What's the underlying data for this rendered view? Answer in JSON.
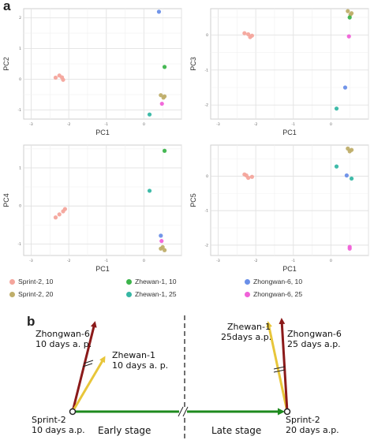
{
  "panel_labels": {
    "a": "a",
    "b": "b"
  },
  "legend": [
    {
      "label": "Sprint-2, 10",
      "color": "#f4a59c"
    },
    {
      "label": "Zhewan-1, 10",
      "color": "#3cb44b"
    },
    {
      "label": "Zhongwan-6, 10",
      "color": "#6a8fe8"
    },
    {
      "label": "Sprint-2, 20",
      "color": "#bfae6a"
    },
    {
      "label": "Zhewan-1, 25",
      "color": "#36b7a4"
    },
    {
      "label": "Zhongwan-6, 25",
      "color": "#f062d8"
    }
  ],
  "chart_data": [
    {
      "type": "scatter",
      "xlabel": "PC1",
      "ylabel": "PC2",
      "xlim": [
        -3.2,
        1.0
      ],
      "ylim": [
        -1.3,
        2.3
      ],
      "xticks": [
        -3,
        -2,
        -1,
        0
      ],
      "yticks": [
        -1,
        0,
        1,
        2
      ],
      "grid": true,
      "points": [
        {
          "x": -2.35,
          "y": 0.05,
          "group": "Sprint-2, 10"
        },
        {
          "x": -2.25,
          "y": 0.12,
          "group": "Sprint-2, 10"
        },
        {
          "x": -2.15,
          "y": -0.02,
          "group": "Sprint-2, 10"
        },
        {
          "x": -2.18,
          "y": 0.06,
          "group": "Sprint-2, 10"
        },
        {
          "x": 0.45,
          "y": -0.52,
          "group": "Sprint-2, 20"
        },
        {
          "x": 0.55,
          "y": -0.56,
          "group": "Sprint-2, 20"
        },
        {
          "x": 0.52,
          "y": -0.6,
          "group": "Sprint-2, 20"
        },
        {
          "x": 0.55,
          "y": 0.4,
          "group": "Zhewan-1, 10"
        },
        {
          "x": 0.15,
          "y": -1.15,
          "group": "Zhewan-1, 25"
        },
        {
          "x": 0.4,
          "y": 2.2,
          "group": "Zhongwan-6, 10"
        },
        {
          "x": 0.48,
          "y": -0.8,
          "group": "Zhongwan-6, 25"
        }
      ]
    },
    {
      "type": "scatter",
      "xlabel": "PC1",
      "ylabel": "PC3",
      "xlim": [
        -3.2,
        1.0
      ],
      "ylim": [
        -2.4,
        0.75
      ],
      "xticks": [
        -3,
        -2,
        -1,
        0
      ],
      "yticks": [
        -2,
        -1,
        0
      ],
      "grid": true,
      "points": [
        {
          "x": -2.3,
          "y": 0.05,
          "group": "Sprint-2, 10"
        },
        {
          "x": -2.2,
          "y": 0.02,
          "group": "Sprint-2, 10"
        },
        {
          "x": -2.15,
          "y": -0.06,
          "group": "Sprint-2, 10"
        },
        {
          "x": -2.1,
          "y": -0.02,
          "group": "Sprint-2, 10"
        },
        {
          "x": 0.45,
          "y": 0.68,
          "group": "Sprint-2, 20"
        },
        {
          "x": 0.55,
          "y": 0.62,
          "group": "Sprint-2, 20"
        },
        {
          "x": 0.52,
          "y": 0.58,
          "group": "Sprint-2, 20"
        },
        {
          "x": 0.5,
          "y": 0.5,
          "group": "Zhewan-1, 10"
        },
        {
          "x": 0.15,
          "y": -2.1,
          "group": "Zhewan-1, 25"
        },
        {
          "x": 0.38,
          "y": -1.5,
          "group": "Zhongwan-6, 10"
        },
        {
          "x": 0.48,
          "y": -0.04,
          "group": "Zhongwan-6, 25"
        }
      ]
    },
    {
      "type": "scatter",
      "xlabel": "PC1",
      "ylabel": "PC4",
      "xlim": [
        -3.2,
        1.0
      ],
      "ylim": [
        -1.3,
        1.6
      ],
      "xticks": [
        -3,
        -2,
        -1,
        0
      ],
      "yticks": [
        -1,
        0,
        1
      ],
      "grid": true,
      "points": [
        {
          "x": -2.35,
          "y": -0.3,
          "group": "Sprint-2, 10"
        },
        {
          "x": -2.25,
          "y": -0.22,
          "group": "Sprint-2, 10"
        },
        {
          "x": -2.15,
          "y": -0.14,
          "group": "Sprint-2, 10"
        },
        {
          "x": -2.1,
          "y": -0.08,
          "group": "Sprint-2, 10"
        },
        {
          "x": 0.45,
          "y": -1.12,
          "group": "Sprint-2, 20"
        },
        {
          "x": 0.55,
          "y": -1.16,
          "group": "Sprint-2, 20"
        },
        {
          "x": 0.5,
          "y": -1.08,
          "group": "Sprint-2, 20"
        },
        {
          "x": 0.55,
          "y": 1.45,
          "group": "Zhewan-1, 10"
        },
        {
          "x": 0.15,
          "y": 0.4,
          "group": "Zhewan-1, 25"
        },
        {
          "x": 0.45,
          "y": -0.78,
          "group": "Zhongwan-6, 10"
        },
        {
          "x": 0.47,
          "y": -0.92,
          "group": "Zhongwan-6, 25"
        }
      ]
    },
    {
      "type": "scatter",
      "xlabel": "PC1",
      "ylabel": "PC5",
      "xlim": [
        -3.2,
        1.0
      ],
      "ylim": [
        -2.3,
        0.9
      ],
      "xticks": [
        -3,
        -2,
        -1,
        0
      ],
      "yticks": [
        -2,
        -1,
        0
      ],
      "grid": true,
      "points": [
        {
          "x": -2.3,
          "y": 0.05,
          "group": "Sprint-2, 10"
        },
        {
          "x": -2.2,
          "y": -0.05,
          "group": "Sprint-2, 10"
        },
        {
          "x": -2.1,
          "y": -0.02,
          "group": "Sprint-2, 10"
        },
        {
          "x": -2.25,
          "y": 0.02,
          "group": "Sprint-2, 10"
        },
        {
          "x": 0.45,
          "y": 0.8,
          "group": "Sprint-2, 20"
        },
        {
          "x": 0.55,
          "y": 0.76,
          "group": "Sprint-2, 20"
        },
        {
          "x": 0.5,
          "y": 0.72,
          "group": "Sprint-2, 20"
        },
        {
          "x": 0.55,
          "y": -0.07,
          "group": "Zhewan-1, 25"
        },
        {
          "x": 0.15,
          "y": 0.28,
          "group": "Zhewan-1, 25"
        },
        {
          "x": 0.42,
          "y": 0.02,
          "group": "Zhongwan-6, 10"
        },
        {
          "x": 0.5,
          "y": -2.05,
          "group": "Zhongwan-6, 25"
        },
        {
          "x": 0.5,
          "y": -2.1,
          "group": "Zhongwan-6, 25"
        }
      ]
    }
  ],
  "diagram": {
    "left_node": {
      "line1": "Sprint-2",
      "line2": "10 days a.p."
    },
    "right_node": {
      "line1": "Sprint-2",
      "line2": "20 days a.p."
    },
    "left_red": {
      "line1": "Zhongwan-6",
      "line2": "10 days a. p."
    },
    "left_yellow": {
      "line1": "Zhewan-1",
      "line2": "10 days a. p."
    },
    "right_yellow": {
      "line1": "Zhewan-1",
      "line2": "25days a.p."
    },
    "right_red": {
      "line1": "Zhongwan-6",
      "line2": "25 days a.p."
    },
    "early": "Early stage",
    "late": "Late stage",
    "colors": {
      "red": "#8b1a1a",
      "yellow": "#e8c63a",
      "green": "#1e8a1e"
    }
  }
}
